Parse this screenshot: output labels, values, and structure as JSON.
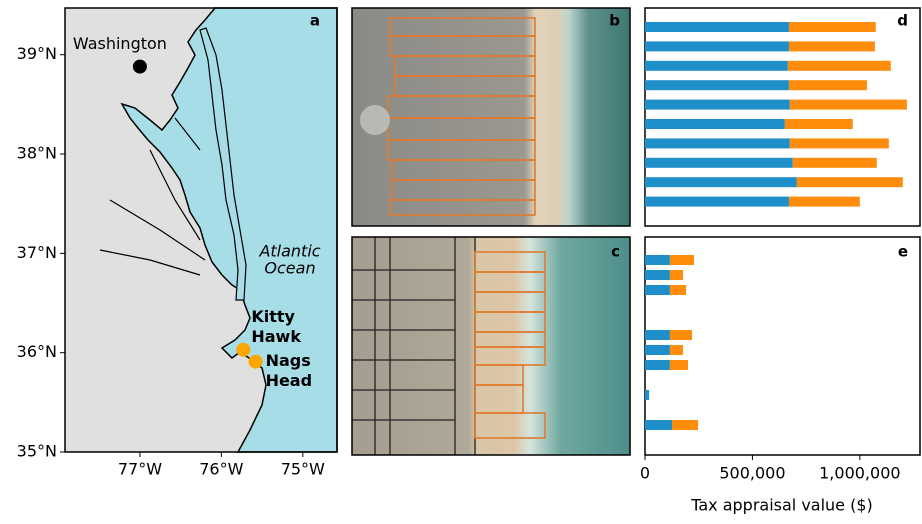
{
  "chart_data": [
    {
      "type": "map",
      "label": "a",
      "xlim": [
        -77.92,
        -74.58
      ],
      "ylim": [
        35,
        39.47
      ],
      "xticks": [
        {
          "value": -77,
          "label": "77°W"
        },
        {
          "value": -76,
          "label": "76°W"
        },
        {
          "value": -75,
          "label": "75°W"
        }
      ],
      "yticks": [
        {
          "value": 35,
          "label": "35°N"
        },
        {
          "value": 36,
          "label": "36°N"
        },
        {
          "value": 37,
          "label": "37°N"
        },
        {
          "value": 38,
          "label": "38°N"
        },
        {
          "value": 39,
          "label": "39°N"
        }
      ],
      "points": [
        {
          "label_lines": [
            "Washington"
          ],
          "x": -77.0,
          "y": 38.88,
          "color": "#000000"
        },
        {
          "label_lines": [
            "Kitty",
            "Hawk"
          ],
          "x": -75.73,
          "y": 36.03,
          "color": "#ffa500"
        },
        {
          "label_lines": [
            "Nags",
            "Head"
          ],
          "x": -75.58,
          "y": 35.91,
          "color": "#ffa500"
        }
      ],
      "annotation_lines": [
        "Atlantic",
        "Ocean"
      ]
    },
    {
      "type": "image",
      "label": "b"
    },
    {
      "type": "image",
      "label": "c"
    },
    {
      "type": "bar",
      "orientation": "horizontal",
      "stacked": true,
      "label": "d",
      "categories": [
        null,
        null,
        null,
        null,
        null,
        null,
        null,
        null,
        null,
        null
      ],
      "xlim": [
        0,
        1280000
      ],
      "series": [
        {
          "color": "#1f8fc9",
          "values": [
            670000,
            670000,
            665000,
            670000,
            674000,
            651000,
            674000,
            688000,
            707000,
            670000
          ]
        },
        {
          "color": "#ff8c0a",
          "values": [
            404000,
            400000,
            479000,
            363000,
            545000,
            316000,
            461000,
            391000,
            493000,
            330000
          ]
        }
      ]
    },
    {
      "type": "bar",
      "orientation": "horizontal",
      "stacked": true,
      "label": "e",
      "categories": [
        null,
        null,
        null,
        null,
        null,
        null,
        null,
        null,
        null,
        null,
        null,
        null
      ],
      "xlim": [
        0,
        1280000
      ],
      "xticks": [
        0,
        {
          "value": 500000,
          "label": "500,000"
        },
        {
          "value": 1000000,
          "label": "1,000,000"
        }
      ],
      "xlabel": "Tax appraisal value ($)",
      "series": [
        {
          "color": "#1f8fc9",
          "values": [
            116000,
            116000,
            116000,
            null,
            null,
            116000,
            116000,
            116000,
            null,
            19000,
            null,
            126000
          ]
        },
        {
          "color": "#ff8c0a",
          "values": [
            112000,
            61000,
            75000,
            null,
            null,
            103000,
            61000,
            84000,
            null,
            0,
            null,
            121000
          ]
        }
      ]
    }
  ]
}
